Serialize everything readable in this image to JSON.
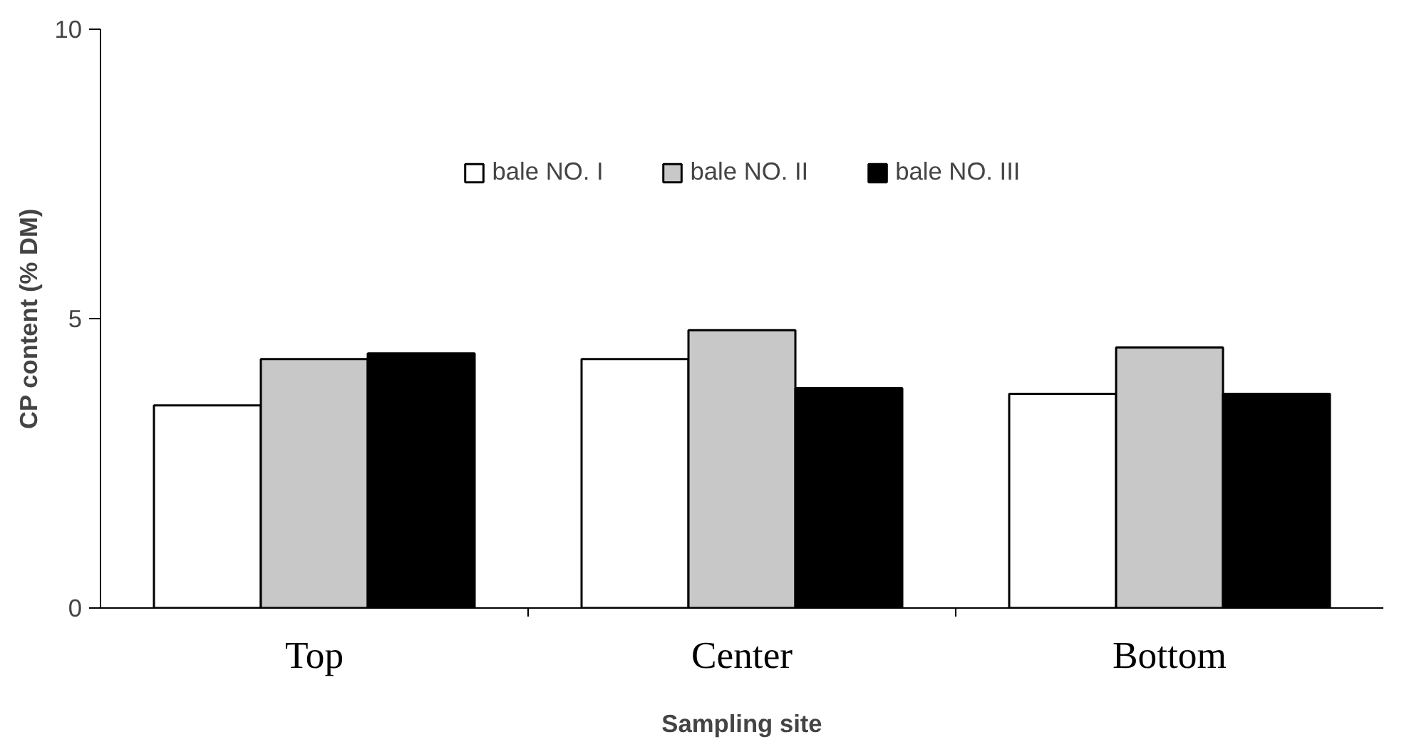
{
  "chart_data": {
    "type": "bar",
    "xlabel": "Sampling site",
    "ylabel": "CP content (% DM)",
    "categories": [
      "Top",
      "Center",
      "Bottom"
    ],
    "series": [
      {
        "name": "bale NO. I",
        "color": "#ffffff",
        "values": [
          3.5,
          4.3,
          3.7
        ]
      },
      {
        "name": "bale NO. II",
        "color": "#c8c8c8",
        "values": [
          4.3,
          4.8,
          4.5
        ]
      },
      {
        "name": "bale NO. III",
        "color": "#000000",
        "values": [
          4.4,
          3.8,
          3.7
        ]
      }
    ],
    "ylim": [
      0,
      10
    ],
    "yticks": [
      0,
      5,
      10
    ],
    "grid": false,
    "legend": "top"
  }
}
